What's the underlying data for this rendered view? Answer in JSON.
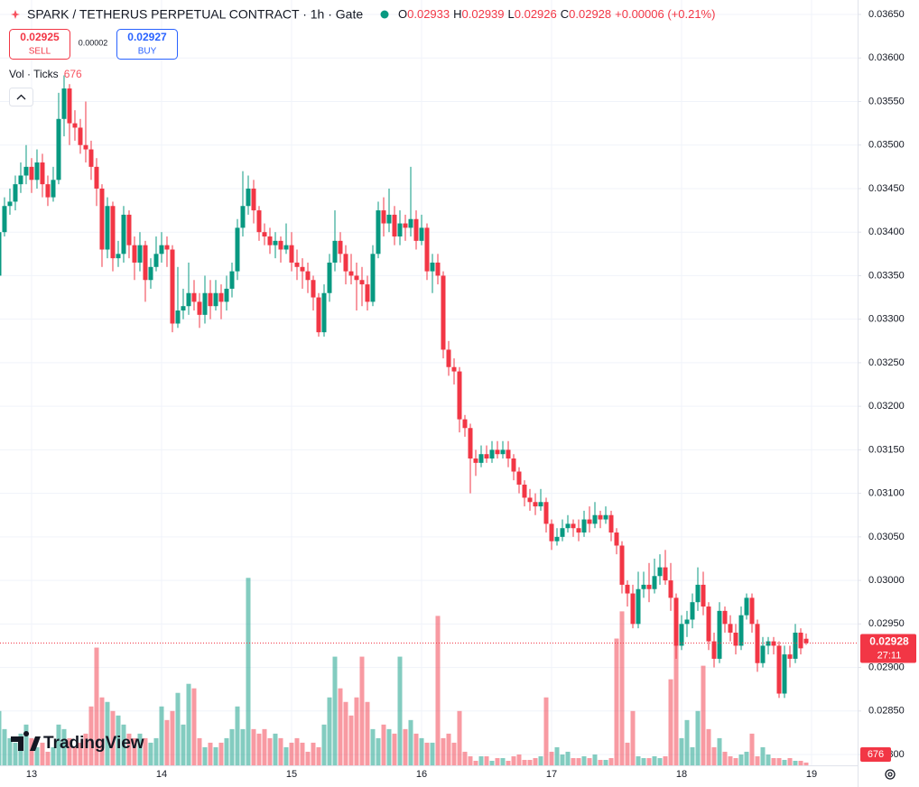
{
  "header": {
    "symbol": "SPARK / TETHERUS PERPETUAL CONTRACT · 1h · Gate",
    "o_label": "O",
    "h_label": "H",
    "l_label": "L",
    "c_label": "C",
    "change": "+0.00006 (+0.21%)"
  },
  "trade": {
    "sell_price": "0.02925",
    "sell": "SELL",
    "spread": "0.00002",
    "buy_price": "0.02927",
    "buy": "BUY"
  },
  "indicator": "Vol · Ticks",
  "countdown": "27:11",
  "logo": "TradingView",
  "chart_data": {
    "type": "candlestick",
    "x": [
      -6,
      -5,
      -4,
      -3,
      -2,
      -1,
      0,
      1,
      2,
      3,
      4,
      5,
      6,
      7,
      8,
      9,
      10,
      11,
      12,
      13,
      14,
      15,
      16,
      17,
      18,
      19,
      20,
      21,
      22,
      23,
      24,
      25,
      26,
      27,
      28,
      29,
      30,
      31,
      32,
      33,
      34,
      35,
      36,
      37,
      38,
      39,
      40,
      41,
      42,
      43,
      44,
      45,
      46,
      47,
      48,
      49,
      50,
      51,
      52,
      53,
      54,
      55,
      56,
      57,
      58,
      59,
      60,
      61,
      62,
      63,
      64,
      65,
      66,
      67,
      68,
      69,
      70,
      71,
      72,
      73,
      74,
      75,
      76,
      77,
      78,
      79,
      80,
      81,
      82,
      83,
      84,
      85,
      86,
      87,
      88,
      89,
      90,
      91,
      92,
      93,
      94,
      95,
      96,
      97,
      98,
      99,
      100,
      101,
      102,
      103,
      104,
      105,
      106,
      107,
      108,
      109,
      110,
      111,
      112,
      113,
      114,
      115,
      116,
      117,
      118,
      119,
      120,
      121,
      122,
      123,
      124,
      125,
      126,
      127,
      128,
      129,
      130,
      131,
      132,
      133,
      134,
      135,
      136,
      137,
      138,
      139,
      140,
      141,
      142,
      143
    ],
    "xlim": [
      -5.83,
      152.5
    ],
    "xticks": [
      {
        "value": 0,
        "label": "13"
      },
      {
        "value": 24,
        "label": "14"
      },
      {
        "value": 48,
        "label": "15"
      },
      {
        "value": 72,
        "label": "16"
      },
      {
        "value": 96,
        "label": "17"
      },
      {
        "value": 120,
        "label": "18"
      },
      {
        "value": 144,
        "label": "19"
      }
    ],
    "ylim": [
      0.027876,
      0.036666
    ],
    "yticks": [
      {
        "value": 0.0365,
        "label": "0.03650"
      },
      {
        "value": 0.036,
        "label": "0.03600"
      },
      {
        "value": 0.0355,
        "label": "0.03550"
      },
      {
        "value": 0.035,
        "label": "0.03500"
      },
      {
        "value": 0.0345,
        "label": "0.03450"
      },
      {
        "value": 0.034,
        "label": "0.03400"
      },
      {
        "value": 0.0335,
        "label": "0.03350"
      },
      {
        "value": 0.033,
        "label": "0.03300"
      },
      {
        "value": 0.0325,
        "label": "0.03250"
      },
      {
        "value": 0.032,
        "label": "0.03200"
      },
      {
        "value": 0.0315,
        "label": "0.03150"
      },
      {
        "value": 0.031,
        "label": "0.03100"
      },
      {
        "value": 0.0305,
        "label": "0.03050"
      },
      {
        "value": 0.03,
        "label": "0.03000"
      },
      {
        "value": 0.0295,
        "label": "0.02950"
      },
      {
        "value": 0.029,
        "label": "0.02900"
      },
      {
        "value": 0.0285,
        "label": "0.02850"
      },
      {
        "value": 0.028,
        "label": "0.02800"
      }
    ],
    "grid": true,
    "up_color": "#089981",
    "down_color": "#f23645",
    "vol_ylim": [
      0,
      57000
    ],
    "ohlc": [
      [
        0.0335,
        0.03405,
        0.0334,
        0.034
      ],
      [
        0.034,
        0.0344,
        0.03395,
        0.0343
      ],
      [
        0.0343,
        0.0345,
        0.0342,
        0.03435
      ],
      [
        0.03435,
        0.03465,
        0.03425,
        0.03455
      ],
      [
        0.03455,
        0.0348,
        0.03445,
        0.03465
      ],
      [
        0.03465,
        0.035,
        0.03455,
        0.03475
      ],
      [
        0.03475,
        0.03485,
        0.03445,
        0.0346
      ],
      [
        0.0346,
        0.03495,
        0.0345,
        0.0348
      ],
      [
        0.0348,
        0.0349,
        0.0344,
        0.03455
      ],
      [
        0.03455,
        0.03465,
        0.0343,
        0.0344
      ],
      [
        0.0344,
        0.03475,
        0.03435,
        0.0346
      ],
      [
        0.0346,
        0.0356,
        0.03455,
        0.0353
      ],
      [
        0.0353,
        0.0358,
        0.0351,
        0.03565
      ],
      [
        0.03565,
        0.0357,
        0.035,
        0.03525
      ],
      [
        0.03525,
        0.0354,
        0.03505,
        0.0352
      ],
      [
        0.0352,
        0.0353,
        0.0349,
        0.035
      ],
      [
        0.035,
        0.0355,
        0.0348,
        0.03495
      ],
      [
        0.03495,
        0.03505,
        0.0346,
        0.03475
      ],
      [
        0.03475,
        0.03485,
        0.0343,
        0.0345
      ],
      [
        0.0345,
        0.03455,
        0.0336,
        0.0338
      ],
      [
        0.0338,
        0.0344,
        0.0337,
        0.0343
      ],
      [
        0.0343,
        0.03435,
        0.03355,
        0.0337
      ],
      [
        0.0337,
        0.0339,
        0.0336,
        0.03375
      ],
      [
        0.03375,
        0.0343,
        0.03365,
        0.0342
      ],
      [
        0.0342,
        0.03425,
        0.0337,
        0.03385
      ],
      [
        0.03385,
        0.03395,
        0.03345,
        0.03365
      ],
      [
        0.03365,
        0.034,
        0.03355,
        0.03385
      ],
      [
        0.03385,
        0.0339,
        0.0332,
        0.03345
      ],
      [
        0.03345,
        0.0337,
        0.03335,
        0.0336
      ],
      [
        0.0336,
        0.03395,
        0.03355,
        0.03375
      ],
      [
        0.03375,
        0.034,
        0.03365,
        0.03385
      ],
      [
        0.03385,
        0.03395,
        0.0336,
        0.0338
      ],
      [
        0.0338,
        0.03385,
        0.03285,
        0.03295
      ],
      [
        0.03295,
        0.0336,
        0.0329,
        0.0331
      ],
      [
        0.0331,
        0.03335,
        0.033,
        0.03315
      ],
      [
        0.03315,
        0.03365,
        0.03305,
        0.0333
      ],
      [
        0.0333,
        0.03345,
        0.0331,
        0.0332
      ],
      [
        0.0332,
        0.0333,
        0.0329,
        0.03305
      ],
      [
        0.03305,
        0.0335,
        0.03295,
        0.0333
      ],
      [
        0.0333,
        0.03345,
        0.033,
        0.03315
      ],
      [
        0.03315,
        0.03345,
        0.0331,
        0.0333
      ],
      [
        0.0333,
        0.0334,
        0.033,
        0.0332
      ],
      [
        0.0332,
        0.0335,
        0.0331,
        0.03335
      ],
      [
        0.03335,
        0.03365,
        0.03325,
        0.03355
      ],
      [
        0.03355,
        0.03415,
        0.03345,
        0.03405
      ],
      [
        0.03405,
        0.0347,
        0.03395,
        0.0343
      ],
      [
        0.0343,
        0.03465,
        0.0342,
        0.0345
      ],
      [
        0.0345,
        0.0346,
        0.0341,
        0.03425
      ],
      [
        0.03425,
        0.0343,
        0.0339,
        0.034
      ],
      [
        0.034,
        0.0341,
        0.03385,
        0.03395
      ],
      [
        0.03395,
        0.03405,
        0.03375,
        0.03385
      ],
      [
        0.03385,
        0.034,
        0.0337,
        0.0339
      ],
      [
        0.0339,
        0.03395,
        0.03365,
        0.0338
      ],
      [
        0.0338,
        0.0341,
        0.03375,
        0.03385
      ],
      [
        0.03385,
        0.034,
        0.03355,
        0.03365
      ],
      [
        0.03365,
        0.0338,
        0.03345,
        0.0336
      ],
      [
        0.0336,
        0.0337,
        0.03335,
        0.03355
      ],
      [
        0.03355,
        0.03365,
        0.0333,
        0.03345
      ],
      [
        0.03345,
        0.0335,
        0.0331,
        0.03325
      ],
      [
        0.03325,
        0.0333,
        0.0328,
        0.03285
      ],
      [
        0.03285,
        0.0334,
        0.0328,
        0.0333
      ],
      [
        0.0333,
        0.03375,
        0.0332,
        0.03365
      ],
      [
        0.03365,
        0.03425,
        0.03355,
        0.0339
      ],
      [
        0.0339,
        0.034,
        0.03365,
        0.03375
      ],
      [
        0.03375,
        0.03385,
        0.0334,
        0.03355
      ],
      [
        0.03355,
        0.03375,
        0.0334,
        0.0335
      ],
      [
        0.0335,
        0.03365,
        0.0331,
        0.03345
      ],
      [
        0.03345,
        0.0336,
        0.03315,
        0.0334
      ],
      [
        0.0334,
        0.0335,
        0.0331,
        0.0332
      ],
      [
        0.0332,
        0.03385,
        0.03315,
        0.03375
      ],
      [
        0.03375,
        0.03435,
        0.0337,
        0.03425
      ],
      [
        0.03425,
        0.0344,
        0.03395,
        0.0341
      ],
      [
        0.0341,
        0.0345,
        0.034,
        0.0342
      ],
      [
        0.0342,
        0.0343,
        0.03385,
        0.03395
      ],
      [
        0.03395,
        0.03425,
        0.03385,
        0.0341
      ],
      [
        0.0341,
        0.0342,
        0.0339,
        0.03405
      ],
      [
        0.03405,
        0.03475,
        0.03395,
        0.03415
      ],
      [
        0.03415,
        0.03425,
        0.0338,
        0.0339
      ],
      [
        0.0339,
        0.0342,
        0.03385,
        0.03405
      ],
      [
        0.03405,
        0.0341,
        0.03345,
        0.03355
      ],
      [
        0.03355,
        0.03375,
        0.0333,
        0.03365
      ],
      [
        0.03365,
        0.03375,
        0.0334,
        0.0335
      ],
      [
        0.0335,
        0.03355,
        0.03255,
        0.03265
      ],
      [
        0.03265,
        0.03275,
        0.03235,
        0.03245
      ],
      [
        0.03245,
        0.03255,
        0.03225,
        0.0324
      ],
      [
        0.0324,
        0.03245,
        0.0317,
        0.03185
      ],
      [
        0.03185,
        0.0319,
        0.03165,
        0.03175
      ],
      [
        0.03175,
        0.0318,
        0.031,
        0.0314
      ],
      [
        0.0314,
        0.0315,
        0.0312,
        0.03135
      ],
      [
        0.03135,
        0.03155,
        0.0313,
        0.03145
      ],
      [
        0.03145,
        0.03155,
        0.03135,
        0.0314
      ],
      [
        0.0314,
        0.0316,
        0.03135,
        0.0315
      ],
      [
        0.0315,
        0.0316,
        0.0314,
        0.03145
      ],
      [
        0.03145,
        0.0316,
        0.0314,
        0.0315
      ],
      [
        0.0315,
        0.0316,
        0.0313,
        0.0314
      ],
      [
        0.0314,
        0.03145,
        0.03115,
        0.03125
      ],
      [
        0.03125,
        0.0313,
        0.031,
        0.0311
      ],
      [
        0.0311,
        0.03115,
        0.03085,
        0.03095
      ],
      [
        0.03095,
        0.03105,
        0.0308,
        0.0309
      ],
      [
        0.0309,
        0.031,
        0.03075,
        0.03085
      ],
      [
        0.03085,
        0.03105,
        0.0308,
        0.0309
      ],
      [
        0.0309,
        0.03095,
        0.03055,
        0.03065
      ],
      [
        0.03065,
        0.0307,
        0.03035,
        0.03045
      ],
      [
        0.03045,
        0.0306,
        0.0304,
        0.0305
      ],
      [
        0.0305,
        0.0307,
        0.03045,
        0.0306
      ],
      [
        0.0306,
        0.03075,
        0.03055,
        0.03065
      ],
      [
        0.03065,
        0.0307,
        0.0305,
        0.0306
      ],
      [
        0.0306,
        0.0307,
        0.03045,
        0.03055
      ],
      [
        0.03055,
        0.0308,
        0.0305,
        0.0307
      ],
      [
        0.0307,
        0.03085,
        0.03055,
        0.03065
      ],
      [
        0.03065,
        0.0309,
        0.0306,
        0.03075
      ],
      [
        0.03075,
        0.0308,
        0.0306,
        0.0307
      ],
      [
        0.0307,
        0.03085,
        0.03065,
        0.03075
      ],
      [
        0.03075,
        0.0308,
        0.03045,
        0.03055
      ],
      [
        0.03055,
        0.0306,
        0.0303,
        0.0304
      ],
      [
        0.0304,
        0.03045,
        0.02985,
        0.02995
      ],
      [
        0.02995,
        0.03,
        0.0297,
        0.02985
      ],
      [
        0.02985,
        0.02995,
        0.02945,
        0.0295
      ],
      [
        0.0295,
        0.0301,
        0.02945,
        0.0299
      ],
      [
        0.0299,
        0.0301,
        0.0298,
        0.02995
      ],
      [
        0.02995,
        0.0302,
        0.02975,
        0.0299
      ],
      [
        0.0299,
        0.03025,
        0.02985,
        0.03005
      ],
      [
        0.03005,
        0.0303,
        0.02995,
        0.03015
      ],
      [
        0.03015,
        0.03035,
        0.02995,
        0.03
      ],
      [
        0.03,
        0.0302,
        0.02965,
        0.0298
      ],
      [
        0.0298,
        0.02985,
        0.0291,
        0.02925
      ],
      [
        0.02925,
        0.0296,
        0.0292,
        0.0295
      ],
      [
        0.0295,
        0.02965,
        0.02935,
        0.02955
      ],
      [
        0.02955,
        0.02985,
        0.02945,
        0.02975
      ],
      [
        0.02975,
        0.03015,
        0.02965,
        0.02995
      ],
      [
        0.02995,
        0.0301,
        0.0296,
        0.0297
      ],
      [
        0.0297,
        0.02975,
        0.0292,
        0.0293
      ],
      [
        0.0293,
        0.0294,
        0.029,
        0.0291
      ],
      [
        0.0291,
        0.02975,
        0.02905,
        0.02965
      ],
      [
        0.02965,
        0.0297,
        0.0294,
        0.0295
      ],
      [
        0.0295,
        0.0296,
        0.0293,
        0.0294
      ],
      [
        0.0294,
        0.0295,
        0.02915,
        0.02925
      ],
      [
        0.02925,
        0.0297,
        0.0292,
        0.0296
      ],
      [
        0.0296,
        0.02985,
        0.02955,
        0.0298
      ],
      [
        0.0298,
        0.02985,
        0.0294,
        0.0295
      ],
      [
        0.0295,
        0.02955,
        0.02895,
        0.02905
      ],
      [
        0.02905,
        0.02935,
        0.029,
        0.02925
      ],
      [
        0.02925,
        0.02935,
        0.02915,
        0.0293
      ],
      [
        0.0293,
        0.02935,
        0.02915,
        0.02925
      ],
      [
        0.02925,
        0.0293,
        0.02865,
        0.0287
      ],
      [
        0.0287,
        0.02925,
        0.02865,
        0.02915
      ],
      [
        0.02915,
        0.02925,
        0.029,
        0.0291
      ],
      [
        0.0291,
        0.0295,
        0.02905,
        0.0294
      ],
      [
        0.0294,
        0.02945,
        0.02915,
        0.02922
      ],
      [
        0.02933,
        0.02939,
        0.02926,
        0.02928
      ]
    ],
    "volumes": [
      13200,
      8800,
      6600,
      5500,
      7700,
      9900,
      6600,
      4400,
      5500,
      3300,
      4400,
      9900,
      8800,
      6600,
      4400,
      5500,
      7700,
      14300,
      28600,
      16500,
      15400,
      13200,
      12100,
      9900,
      7700,
      6600,
      7700,
      6600,
      5500,
      6600,
      14300,
      11000,
      13200,
      17600,
      9900,
      19800,
      18700,
      6600,
      4400,
      5500,
      4400,
      5500,
      6600,
      8800,
      14300,
      8800,
      45540,
      8800,
      7700,
      8800,
      6600,
      7700,
      6600,
      4400,
      5500,
      6600,
      5500,
      3300,
      5500,
      4400,
      9900,
      16500,
      26400,
      18700,
      15400,
      12100,
      16500,
      26400,
      15400,
      8800,
      6600,
      9900,
      8800,
      7700,
      26400,
      8800,
      11000,
      7700,
      6600,
      5500,
      5500,
      36300,
      6600,
      7700,
      5500,
      13200,
      3300,
      2200,
      1100,
      2200,
      2200,
      1100,
      1760,
      1760,
      1100,
      2200,
      2640,
      1320,
      1320,
      1760,
      2200,
      16500,
      3300,
      4400,
      2640,
      3300,
      1760,
      1760,
      2200,
      1760,
      2640,
      1320,
      1320,
      1760,
      30800,
      37400,
      5500,
      13200,
      2200,
      1760,
      1760,
      2200,
      1760,
      2200,
      20900,
      30800,
      6600,
      11000,
      4400,
      13200,
      24200,
      8800,
      4400,
      6600,
      3300,
      2200,
      1760,
      2640,
      3300,
      7700,
      2200,
      4400,
      2640,
      1760,
      1760,
      1320,
      1760,
      1100,
      1100,
      676
    ]
  }
}
